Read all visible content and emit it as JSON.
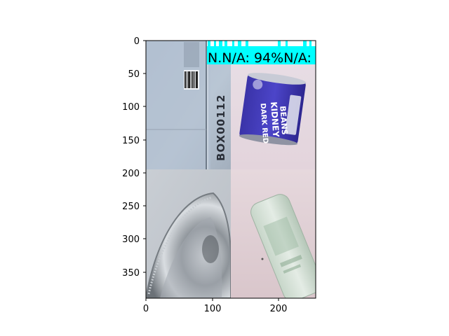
{
  "figure": {
    "x_ticks": [
      "0",
      "100",
      "200"
    ],
    "y_ticks": [
      "0",
      "50",
      "100",
      "150",
      "200",
      "250",
      "300",
      "350"
    ]
  },
  "tiles": [
    {
      "id": "cardboard-box",
      "carton_label": "BOX00112"
    },
    {
      "id": "kidney-bean-can",
      "can_label_1": "DARK RED",
      "can_label_2": "KIDNEY",
      "can_label_3": "BEANS"
    },
    {
      "id": "foil-tray"
    },
    {
      "id": "glass-jar"
    }
  ],
  "overlay": {
    "label_text": "N.N/A: 94%N/A:",
    "bg_color": "#00ffff",
    "text_color": "#000000"
  }
}
